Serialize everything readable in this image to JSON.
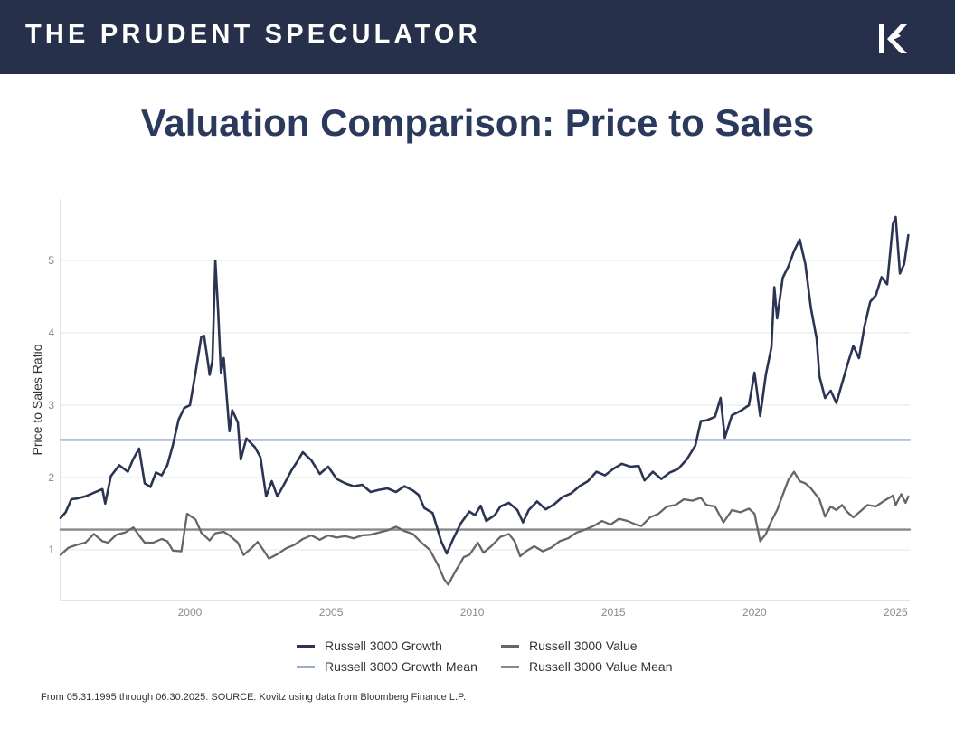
{
  "header": {
    "brand": "THE PRUDENT SPECULATOR",
    "logo_icon": "kovitz-k-logo-icon"
  },
  "page_title": "Valuation Comparison: Price to Sales",
  "source_note": "From 05.31.1995 through 06.30.2025. SOURCE: Kovitz using data from Bloomberg Finance L.P.",
  "colors": {
    "growth": "#2b3553",
    "growth_mean": "#9cadcf",
    "value": "#666666",
    "value_mean": "#888888",
    "header_bg": "#26304a",
    "title": "#2b3a5c"
  },
  "legend": [
    {
      "label": "Russell 3000 Growth",
      "series": "growth"
    },
    {
      "label": "Russell 3000 Value",
      "series": "value"
    },
    {
      "label": "Russell 3000 Growth Mean",
      "series": "growth_mean"
    },
    {
      "label": "Russell 3000 Value Mean",
      "series": "value_mean"
    }
  ],
  "chart_data": {
    "type": "line",
    "title": "Valuation Comparison: Price to Sales",
    "xlabel": "",
    "ylabel": "Price to Sales Ratio",
    "xlim": [
      1995.42,
      2025.5
    ],
    "ylim": [
      0.3,
      5.85
    ],
    "xticks": [
      2000,
      2005,
      2010,
      2015,
      2020,
      2025
    ],
    "yticks": [
      1,
      2,
      3,
      4,
      5
    ],
    "grid": "horizontal",
    "legend_position": "bottom",
    "series": [
      {
        "name": "Russell 3000 Growth",
        "key": "growth",
        "points": [
          [
            1995.42,
            1.44
          ],
          [
            1995.6,
            1.52
          ],
          [
            1995.8,
            1.7
          ],
          [
            1996.0,
            1.71
          ],
          [
            1996.3,
            1.74
          ],
          [
            1996.6,
            1.79
          ],
          [
            1996.9,
            1.84
          ],
          [
            1997.0,
            1.64
          ],
          [
            1997.2,
            2.02
          ],
          [
            1997.5,
            2.17
          ],
          [
            1997.8,
            2.08
          ],
          [
            1998.0,
            2.26
          ],
          [
            1998.2,
            2.4
          ],
          [
            1998.4,
            1.92
          ],
          [
            1998.6,
            1.87
          ],
          [
            1998.8,
            2.07
          ],
          [
            1999.0,
            2.03
          ],
          [
            1999.2,
            2.17
          ],
          [
            1999.4,
            2.45
          ],
          [
            1999.6,
            2.8
          ],
          [
            1999.8,
            2.96
          ],
          [
            2000.0,
            3.0
          ],
          [
            2000.2,
            3.45
          ],
          [
            2000.4,
            3.94
          ],
          [
            2000.5,
            3.96
          ],
          [
            2000.6,
            3.7
          ],
          [
            2000.7,
            3.42
          ],
          [
            2000.8,
            3.62
          ],
          [
            2000.9,
            5.0
          ],
          [
            2001.0,
            4.3
          ],
          [
            2001.1,
            3.45
          ],
          [
            2001.2,
            3.65
          ],
          [
            2001.4,
            2.64
          ],
          [
            2001.5,
            2.93
          ],
          [
            2001.7,
            2.76
          ],
          [
            2001.8,
            2.25
          ],
          [
            2002.0,
            2.54
          ],
          [
            2002.3,
            2.42
          ],
          [
            2002.5,
            2.28
          ],
          [
            2002.7,
            1.74
          ],
          [
            2002.9,
            1.95
          ],
          [
            2003.1,
            1.74
          ],
          [
            2003.3,
            1.88
          ],
          [
            2003.6,
            2.1
          ],
          [
            2003.8,
            2.22
          ],
          [
            2004.0,
            2.35
          ],
          [
            2004.3,
            2.24
          ],
          [
            2004.6,
            2.05
          ],
          [
            2004.9,
            2.15
          ],
          [
            2005.2,
            1.98
          ],
          [
            2005.5,
            1.92
          ],
          [
            2005.8,
            1.88
          ],
          [
            2006.1,
            1.9
          ],
          [
            2006.4,
            1.8
          ],
          [
            2006.7,
            1.83
          ],
          [
            2007.0,
            1.85
          ],
          [
            2007.3,
            1.8
          ],
          [
            2007.6,
            1.88
          ],
          [
            2007.9,
            1.82
          ],
          [
            2008.1,
            1.76
          ],
          [
            2008.3,
            1.58
          ],
          [
            2008.6,
            1.51
          ],
          [
            2008.9,
            1.12
          ],
          [
            2009.1,
            0.95
          ],
          [
            2009.3,
            1.13
          ],
          [
            2009.6,
            1.37
          ],
          [
            2009.9,
            1.53
          ],
          [
            2010.1,
            1.48
          ],
          [
            2010.3,
            1.61
          ],
          [
            2010.5,
            1.4
          ],
          [
            2010.8,
            1.48
          ],
          [
            2011.0,
            1.6
          ],
          [
            2011.3,
            1.65
          ],
          [
            2011.6,
            1.55
          ],
          [
            2011.8,
            1.38
          ],
          [
            2012.0,
            1.55
          ],
          [
            2012.3,
            1.67
          ],
          [
            2012.6,
            1.56
          ],
          [
            2012.9,
            1.63
          ],
          [
            2013.2,
            1.73
          ],
          [
            2013.5,
            1.78
          ],
          [
            2013.8,
            1.88
          ],
          [
            2014.1,
            1.95
          ],
          [
            2014.4,
            2.08
          ],
          [
            2014.7,
            2.03
          ],
          [
            2015.0,
            2.12
          ],
          [
            2015.3,
            2.19
          ],
          [
            2015.6,
            2.15
          ],
          [
            2015.9,
            2.16
          ],
          [
            2016.1,
            1.96
          ],
          [
            2016.4,
            2.08
          ],
          [
            2016.7,
            1.98
          ],
          [
            2017.0,
            2.07
          ],
          [
            2017.3,
            2.12
          ],
          [
            2017.6,
            2.25
          ],
          [
            2017.9,
            2.44
          ],
          [
            2018.1,
            2.78
          ],
          [
            2018.3,
            2.79
          ],
          [
            2018.6,
            2.84
          ],
          [
            2018.8,
            3.1
          ],
          [
            2018.95,
            2.55
          ],
          [
            2019.2,
            2.86
          ],
          [
            2019.5,
            2.92
          ],
          [
            2019.8,
            3.0
          ],
          [
            2020.0,
            3.45
          ],
          [
            2020.2,
            2.85
          ],
          [
            2020.4,
            3.42
          ],
          [
            2020.6,
            3.8
          ],
          [
            2020.7,
            4.63
          ],
          [
            2020.8,
            4.2
          ],
          [
            2021.0,
            4.76
          ],
          [
            2021.2,
            4.92
          ],
          [
            2021.4,
            5.13
          ],
          [
            2021.6,
            5.29
          ],
          [
            2021.8,
            4.95
          ],
          [
            2022.0,
            4.34
          ],
          [
            2022.2,
            3.92
          ],
          [
            2022.3,
            3.4
          ],
          [
            2022.5,
            3.1
          ],
          [
            2022.7,
            3.2
          ],
          [
            2022.9,
            3.03
          ],
          [
            2023.1,
            3.3
          ],
          [
            2023.3,
            3.57
          ],
          [
            2023.5,
            3.82
          ],
          [
            2023.7,
            3.65
          ],
          [
            2023.9,
            4.1
          ],
          [
            2024.1,
            4.43
          ],
          [
            2024.3,
            4.52
          ],
          [
            2024.5,
            4.77
          ],
          [
            2024.7,
            4.67
          ],
          [
            2024.9,
            5.5
          ],
          [
            2025.0,
            5.6
          ],
          [
            2025.15,
            4.82
          ],
          [
            2025.3,
            4.95
          ],
          [
            2025.45,
            5.35
          ]
        ]
      },
      {
        "name": "Russell 3000 Growth Mean",
        "key": "growth_mean",
        "points": [
          [
            1995.42,
            2.52
          ],
          [
            2025.5,
            2.52
          ]
        ]
      },
      {
        "name": "Russell 3000 Value",
        "key": "value",
        "points": [
          [
            1995.42,
            0.93
          ],
          [
            1995.7,
            1.03
          ],
          [
            1996.0,
            1.07
          ],
          [
            1996.3,
            1.1
          ],
          [
            1996.6,
            1.22
          ],
          [
            1996.9,
            1.12
          ],
          [
            1997.1,
            1.1
          ],
          [
            1997.4,
            1.21
          ],
          [
            1997.7,
            1.24
          ],
          [
            1998.0,
            1.31
          ],
          [
            1998.2,
            1.2
          ],
          [
            1998.4,
            1.1
          ],
          [
            1998.7,
            1.1
          ],
          [
            1999.0,
            1.15
          ],
          [
            1999.2,
            1.12
          ],
          [
            1999.4,
            0.99
          ],
          [
            1999.7,
            0.98
          ],
          [
            1999.9,
            1.5
          ],
          [
            2000.2,
            1.42
          ],
          [
            2000.4,
            1.24
          ],
          [
            2000.7,
            1.13
          ],
          [
            2000.9,
            1.23
          ],
          [
            2001.2,
            1.25
          ],
          [
            2001.4,
            1.2
          ],
          [
            2001.7,
            1.1
          ],
          [
            2001.9,
            0.93
          ],
          [
            2002.2,
            1.03
          ],
          [
            2002.4,
            1.11
          ],
          [
            2002.6,
            1.0
          ],
          [
            2002.8,
            0.88
          ],
          [
            2003.1,
            0.94
          ],
          [
            2003.4,
            1.02
          ],
          [
            2003.7,
            1.07
          ],
          [
            2004.0,
            1.15
          ],
          [
            2004.3,
            1.2
          ],
          [
            2004.6,
            1.14
          ],
          [
            2004.9,
            1.2
          ],
          [
            2005.2,
            1.17
          ],
          [
            2005.5,
            1.19
          ],
          [
            2005.8,
            1.16
          ],
          [
            2006.1,
            1.2
          ],
          [
            2006.4,
            1.21
          ],
          [
            2006.7,
            1.24
          ],
          [
            2007.0,
            1.27
          ],
          [
            2007.3,
            1.32
          ],
          [
            2007.6,
            1.26
          ],
          [
            2007.9,
            1.22
          ],
          [
            2008.2,
            1.1
          ],
          [
            2008.5,
            1.0
          ],
          [
            2008.8,
            0.78
          ],
          [
            2009.0,
            0.6
          ],
          [
            2009.15,
            0.52
          ],
          [
            2009.4,
            0.7
          ],
          [
            2009.7,
            0.9
          ],
          [
            2009.9,
            0.93
          ],
          [
            2010.2,
            1.1
          ],
          [
            2010.4,
            0.96
          ],
          [
            2010.7,
            1.06
          ],
          [
            2011.0,
            1.18
          ],
          [
            2011.3,
            1.22
          ],
          [
            2011.5,
            1.12
          ],
          [
            2011.7,
            0.91
          ],
          [
            2011.9,
            0.98
          ],
          [
            2012.2,
            1.05
          ],
          [
            2012.5,
            0.98
          ],
          [
            2012.8,
            1.03
          ],
          [
            2013.1,
            1.12
          ],
          [
            2013.4,
            1.16
          ],
          [
            2013.7,
            1.24
          ],
          [
            2014.0,
            1.28
          ],
          [
            2014.3,
            1.33
          ],
          [
            2014.6,
            1.4
          ],
          [
            2014.9,
            1.35
          ],
          [
            2015.2,
            1.43
          ],
          [
            2015.5,
            1.4
          ],
          [
            2015.8,
            1.35
          ],
          [
            2016.0,
            1.33
          ],
          [
            2016.3,
            1.45
          ],
          [
            2016.6,
            1.5
          ],
          [
            2016.9,
            1.6
          ],
          [
            2017.2,
            1.62
          ],
          [
            2017.5,
            1.7
          ],
          [
            2017.8,
            1.68
          ],
          [
            2018.1,
            1.72
          ],
          [
            2018.3,
            1.62
          ],
          [
            2018.6,
            1.6
          ],
          [
            2018.9,
            1.38
          ],
          [
            2019.2,
            1.55
          ],
          [
            2019.5,
            1.52
          ],
          [
            2019.8,
            1.57
          ],
          [
            2020.0,
            1.5
          ],
          [
            2020.2,
            1.12
          ],
          [
            2020.4,
            1.22
          ],
          [
            2020.6,
            1.4
          ],
          [
            2020.8,
            1.55
          ],
          [
            2021.0,
            1.76
          ],
          [
            2021.2,
            1.97
          ],
          [
            2021.4,
            2.08
          ],
          [
            2021.6,
            1.95
          ],
          [
            2021.8,
            1.92
          ],
          [
            2022.0,
            1.85
          ],
          [
            2022.3,
            1.7
          ],
          [
            2022.5,
            1.46
          ],
          [
            2022.7,
            1.6
          ],
          [
            2022.9,
            1.55
          ],
          [
            2023.1,
            1.62
          ],
          [
            2023.3,
            1.52
          ],
          [
            2023.5,
            1.45
          ],
          [
            2023.8,
            1.55
          ],
          [
            2024.0,
            1.62
          ],
          [
            2024.3,
            1.6
          ],
          [
            2024.6,
            1.68
          ],
          [
            2024.9,
            1.75
          ],
          [
            2025.0,
            1.62
          ],
          [
            2025.2,
            1.77
          ],
          [
            2025.35,
            1.65
          ],
          [
            2025.45,
            1.74
          ]
        ]
      },
      {
        "name": "Russell 3000 Value Mean",
        "key": "value_mean",
        "points": [
          [
            1995.42,
            1.28
          ],
          [
            2025.5,
            1.28
          ]
        ]
      }
    ]
  }
}
